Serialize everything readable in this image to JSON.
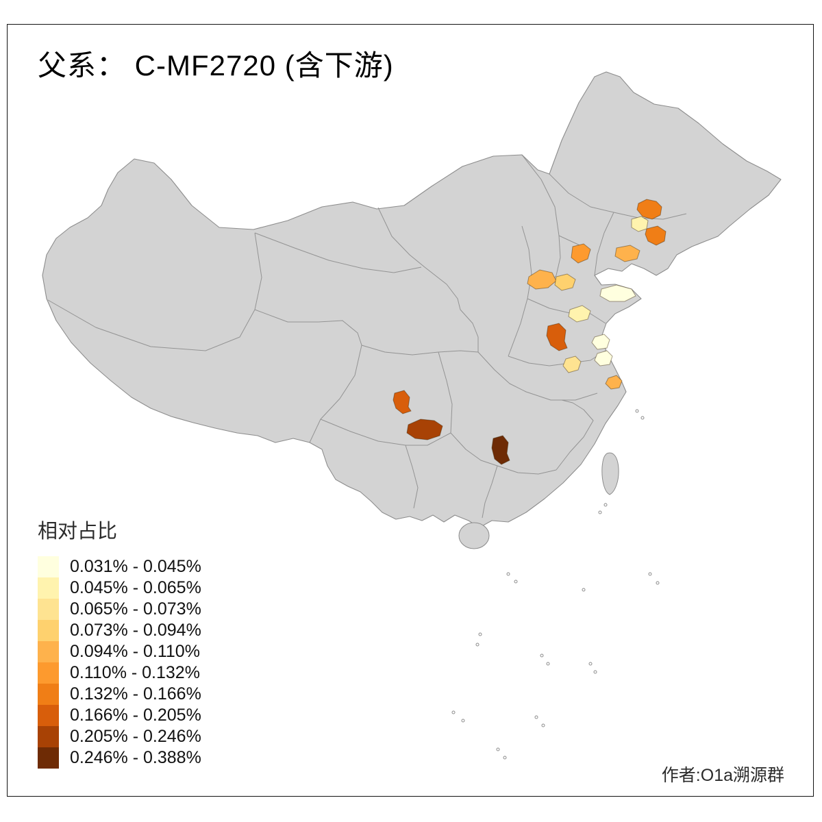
{
  "title": "父系： C-MF2720 (含下游)",
  "attribution": "作者:O1a溯源群",
  "map": {
    "land_color": "#d3d3d3",
    "border_color": "#8c8c8c",
    "frame_color": "#111111",
    "background": "#ffffff",
    "regions": [
      {
        "id": "region-01",
        "class": 6
      },
      {
        "id": "region-02",
        "class": 6
      },
      {
        "id": "region-03",
        "class": 1
      },
      {
        "id": "region-04",
        "class": 5
      },
      {
        "id": "region-05",
        "class": 4
      },
      {
        "id": "region-06",
        "class": 4
      },
      {
        "id": "region-07",
        "class": 3
      },
      {
        "id": "region-08",
        "class": 0
      },
      {
        "id": "region-09",
        "class": 1
      },
      {
        "id": "region-10",
        "class": 7
      },
      {
        "id": "region-11",
        "class": 0
      },
      {
        "id": "region-12",
        "class": 0
      },
      {
        "id": "region-13",
        "class": 2
      },
      {
        "id": "region-14",
        "class": 4
      },
      {
        "id": "region-15",
        "class": 7
      },
      {
        "id": "region-16",
        "class": 8
      },
      {
        "id": "region-17",
        "class": 9
      }
    ]
  },
  "legend": {
    "title": "相对占比",
    "items": [
      {
        "label": "0.031% - 0.045%",
        "color": "#ffffdf"
      },
      {
        "label": "0.045% - 0.065%",
        "color": "#fff3ae"
      },
      {
        "label": "0.065% - 0.073%",
        "color": "#fee391"
      },
      {
        "label": "0.073% - 0.094%",
        "color": "#fed16e"
      },
      {
        "label": "0.094% - 0.110%",
        "color": "#feb24c"
      },
      {
        "label": "0.110% - 0.132%",
        "color": "#fd9a2e"
      },
      {
        "label": "0.132% - 0.166%",
        "color": "#f07e16"
      },
      {
        "label": "0.166% - 0.205%",
        "color": "#d85e0b"
      },
      {
        "label": "0.205% - 0.246%",
        "color": "#a84205"
      },
      {
        "label": "0.246% - 0.388%",
        "color": "#6e2b05"
      }
    ]
  }
}
